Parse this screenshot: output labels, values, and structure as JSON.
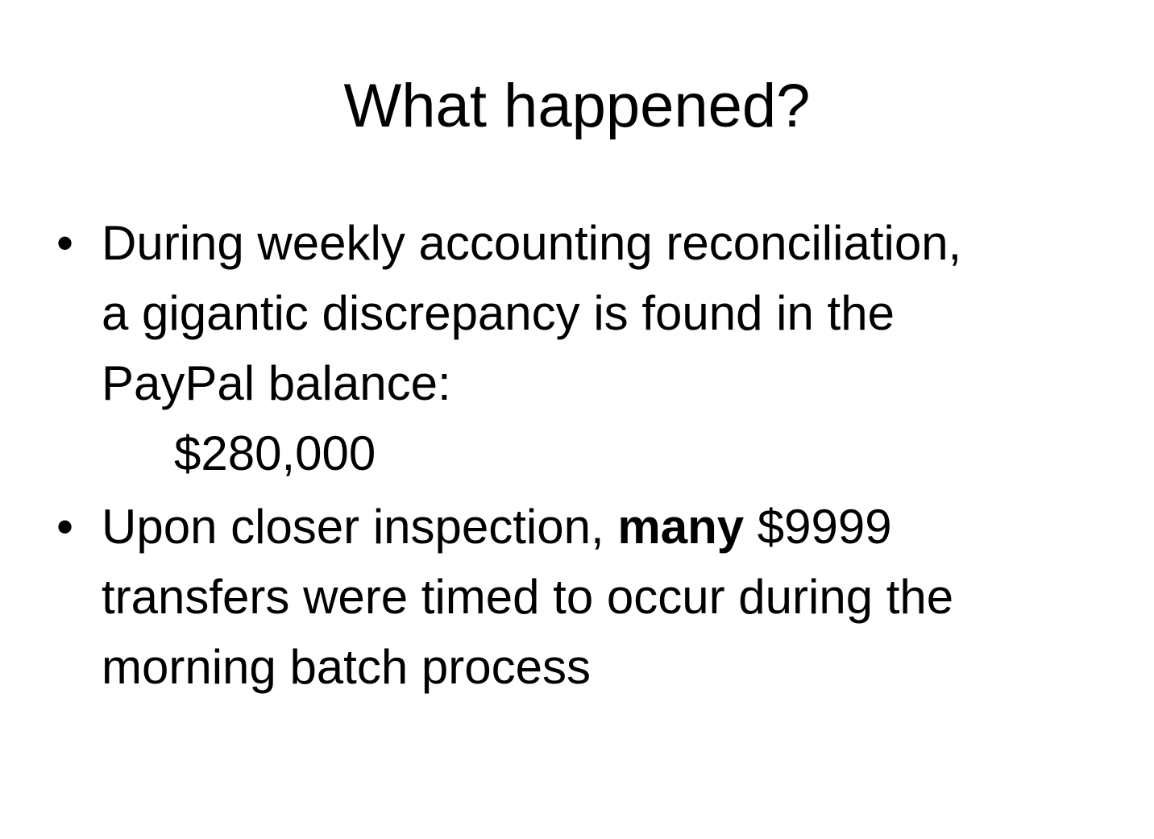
{
  "slide": {
    "title": "What happened?",
    "bullet_glyph": "•",
    "bullets": [
      {
        "lines": [
          "During weekly accounting reconciliation,",
          "a gigantic discrepancy is found in the",
          "PayPal balance:"
        ],
        "amount": "$280,000"
      },
      {
        "line1_before": "Upon closer inspection, ",
        "line1_bold": "many",
        "line1_after": " $9999",
        "lines": [
          "transfers were timed to occur during the",
          "morning batch process"
        ]
      }
    ]
  }
}
